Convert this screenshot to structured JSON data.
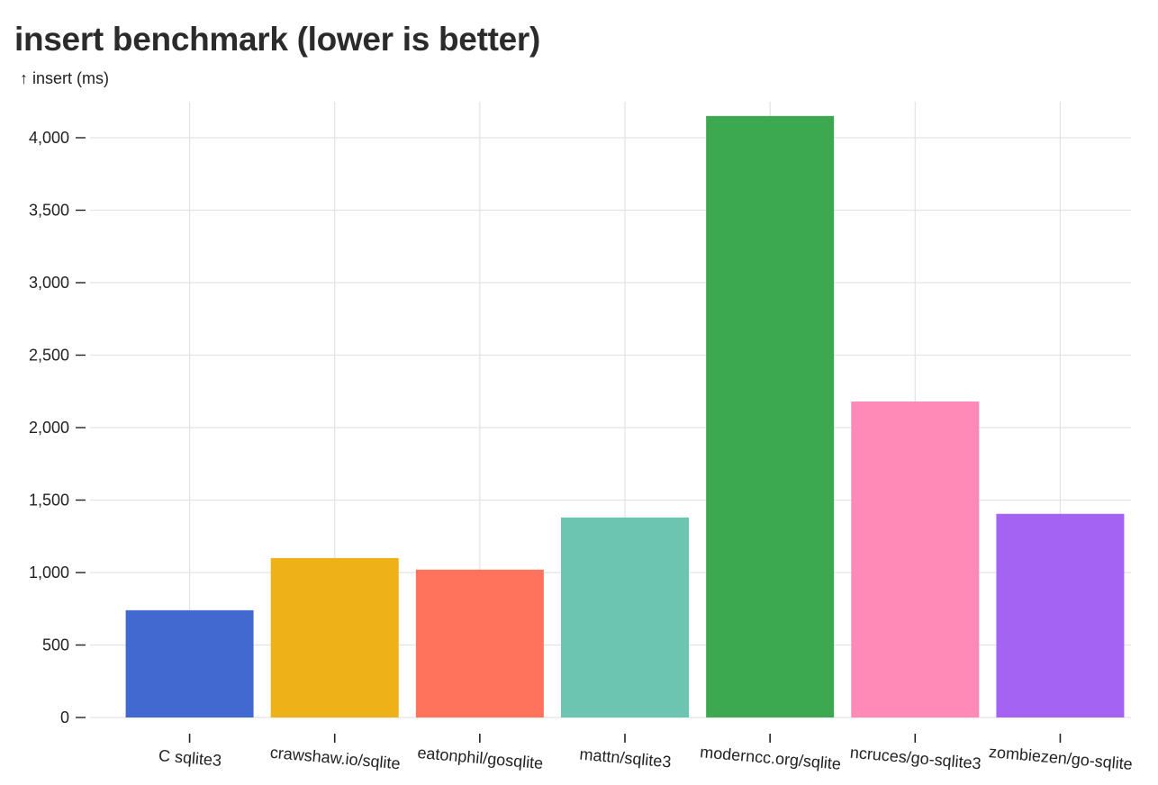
{
  "chart_data": {
    "type": "bar",
    "title": "insert benchmark (lower is better)",
    "ylabel": "↑ insert (ms)",
    "xlabel": "",
    "ylim": [
      0,
      4250
    ],
    "yticks": [
      0,
      500,
      1000,
      1500,
      2000,
      2500,
      3000,
      3500,
      4000
    ],
    "ytick_labels": [
      "0",
      "500",
      "1,000",
      "1,500",
      "2,000",
      "2,500",
      "3,000",
      "3,500",
      "4,000"
    ],
    "grid": true,
    "categories": [
      "C sqlite3",
      "crawshaw.io/sqlite",
      "eatonphil/gosqlite",
      "mattn/sqlite3",
      "moderncc.org/sqlite",
      "ncruces/go-sqlite3",
      "zombiezen/go-sqlite"
    ],
    "values": [
      740,
      1100,
      1020,
      1380,
      4150,
      2180,
      1405
    ],
    "colors": [
      "#4269d0",
      "#efb118",
      "#ff725c",
      "#6cc5b0",
      "#3ca951",
      "#ff8ab7",
      "#a463f2"
    ]
  }
}
